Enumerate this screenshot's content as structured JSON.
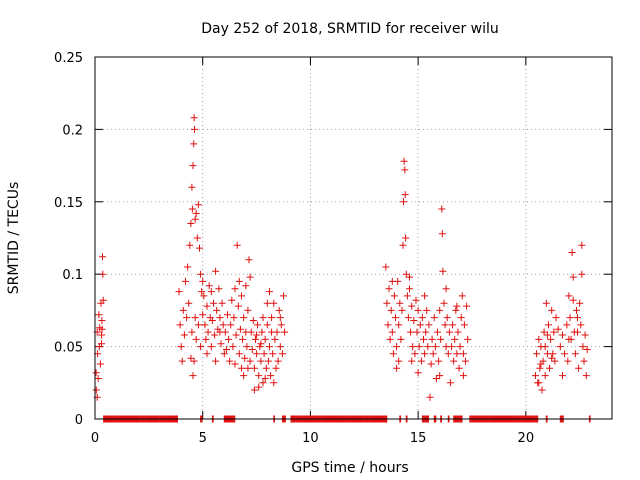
{
  "chart_data": {
    "type": "scatter",
    "title": "Day 252 of 2018, SRMTID for receiver wilu",
    "xlabel": "GPS time / hours",
    "ylabel": "SRMTID / TECUs",
    "xlim": [
      0,
      24
    ],
    "ylim": [
      0,
      0.25
    ],
    "xticks": [
      0,
      5,
      10,
      15,
      20
    ],
    "xtick_labels": [
      "0",
      "5",
      "10",
      "15",
      "20"
    ],
    "yticks": [
      0,
      0.05,
      0.1,
      0.15,
      0.2,
      0.25
    ],
    "ytick_labels": [
      "0",
      "0.05",
      "0.1",
      "0.15",
      "0.2",
      "0.25"
    ],
    "grid": true,
    "marker": "+",
    "color": "#e01010",
    "series": [
      {
        "name": "SRMTID",
        "points": [
          [
            0.05,
            0.032
          ],
          [
            0.1,
            0.06
          ],
          [
            0.12,
            0.045
          ],
          [
            0.15,
            0.028
          ],
          [
            0.18,
            0.072
          ],
          [
            0.2,
            0.05
          ],
          [
            0.22,
            0.063
          ],
          [
            0.25,
            0.038
          ],
          [
            0.28,
            0.08
          ],
          [
            0.3,
            0.058
          ],
          [
            0.32,
            0.068
          ],
          [
            0.35,
            0.112
          ],
          [
            0.36,
            0.1
          ],
          [
            0.38,
            0.082
          ],
          [
            0.06,
            0.02
          ],
          [
            0.1,
            0.015
          ],
          [
            0.3,
            0.052
          ],
          [
            0.33,
            0.062
          ],
          [
            3.9,
            0.088
          ],
          [
            3.95,
            0.065
          ],
          [
            4.0,
            0.05
          ],
          [
            4.05,
            0.04
          ],
          [
            4.1,
            0.075
          ],
          [
            4.15,
            0.058
          ],
          [
            4.2,
            0.095
          ],
          [
            4.25,
            0.07
          ],
          [
            4.3,
            0.105
          ],
          [
            4.35,
            0.08
          ],
          [
            4.4,
            0.12
          ],
          [
            4.45,
            0.135
          ],
          [
            4.5,
            0.16
          ],
          [
            4.52,
            0.145
          ],
          [
            4.55,
            0.175
          ],
          [
            4.58,
            0.19
          ],
          [
            4.6,
            0.208
          ],
          [
            4.62,
            0.2
          ],
          [
            4.65,
            0.138
          ],
          [
            4.7,
            0.142
          ],
          [
            4.75,
            0.125
          ],
          [
            4.8,
            0.148
          ],
          [
            4.85,
            0.118
          ],
          [
            4.9,
            0.1
          ],
          [
            4.95,
            0.088
          ],
          [
            5.0,
            0.072
          ],
          [
            5.05,
            0.085
          ],
          [
            5.1,
            0.065
          ],
          [
            5.15,
            0.055
          ],
          [
            5.2,
            0.078
          ],
          [
            5.25,
            0.06
          ],
          [
            5.3,
            0.092
          ],
          [
            5.35,
            0.07
          ],
          [
            5.4,
            0.05
          ],
          [
            5.45,
            0.068
          ],
          [
            5.5,
            0.08
          ],
          [
            5.55,
            0.058
          ],
          [
            5.6,
            0.102
          ],
          [
            5.65,
            0.075
          ],
          [
            5.7,
            0.062
          ],
          [
            5.75,
            0.09
          ],
          [
            5.8,
            0.07
          ],
          [
            5.85,
            0.052
          ],
          [
            5.9,
            0.08
          ],
          [
            5.95,
            0.065
          ],
          [
            6.0,
            0.045
          ],
          [
            4.55,
            0.03
          ],
          [
            4.6,
            0.04
          ],
          [
            4.7,
            0.055
          ],
          [
            4.8,
            0.065
          ],
          [
            4.9,
            0.05
          ],
          [
            5.0,
            0.095
          ],
          [
            4.45,
            0.042
          ],
          [
            4.5,
            0.06
          ],
          [
            4.65,
            0.07
          ],
          [
            5.2,
            0.045
          ],
          [
            5.4,
            0.088
          ],
          [
            5.6,
            0.04
          ],
          [
            5.8,
            0.06
          ],
          [
            6.05,
            0.06
          ],
          [
            6.1,
            0.048
          ],
          [
            6.15,
            0.072
          ],
          [
            6.2,
            0.055
          ],
          [
            6.25,
            0.04
          ],
          [
            6.3,
            0.065
          ],
          [
            6.35,
            0.082
          ],
          [
            6.4,
            0.05
          ],
          [
            6.45,
            0.07
          ],
          [
            6.5,
            0.038
          ],
          [
            6.55,
            0.058
          ],
          [
            6.6,
            0.12
          ],
          [
            6.65,
            0.078
          ],
          [
            6.7,
            0.045
          ],
          [
            6.75,
            0.062
          ],
          [
            6.8,
            0.035
          ],
          [
            6.85,
            0.055
          ],
          [
            6.9,
            0.07
          ],
          [
            6.95,
            0.042
          ],
          [
            7.0,
            0.06
          ],
          [
            7.05,
            0.05
          ],
          [
            7.1,
            0.075
          ],
          [
            7.15,
            0.11
          ],
          [
            7.2,
            0.04
          ],
          [
            7.25,
            0.06
          ],
          [
            7.3,
            0.048
          ],
          [
            7.35,
            0.068
          ],
          [
            7.4,
            0.035
          ],
          [
            7.45,
            0.055
          ],
          [
            7.5,
            0.045
          ],
          [
            7.55,
            0.065
          ],
          [
            7.6,
            0.03
          ],
          [
            7.65,
            0.05
          ],
          [
            7.7,
            0.04
          ],
          [
            7.75,
            0.06
          ],
          [
            7.8,
            0.025
          ],
          [
            7.85,
            0.045
          ],
          [
            7.9,
            0.055
          ],
          [
            7.95,
            0.035
          ],
          [
            8.0,
            0.065
          ],
          [
            8.05,
            0.04
          ],
          [
            8.1,
            0.05
          ],
          [
            8.15,
            0.03
          ],
          [
            8.2,
            0.07
          ],
          [
            8.25,
            0.045
          ],
          [
            8.3,
            0.08
          ],
          [
            8.35,
            0.055
          ],
          [
            8.4,
            0.035
          ],
          [
            8.45,
            0.06
          ],
          [
            8.5,
            0.04
          ],
          [
            8.55,
            0.075
          ],
          [
            8.6,
            0.05
          ],
          [
            8.65,
            0.065
          ],
          [
            8.7,
            0.045
          ],
          [
            8.75,
            0.085
          ],
          [
            8.8,
            0.06
          ],
          [
            7.2,
            0.098
          ],
          [
            7.0,
            0.092
          ],
          [
            6.8,
            0.085
          ],
          [
            6.5,
            0.09
          ],
          [
            8.1,
            0.088
          ],
          [
            7.9,
            0.028
          ],
          [
            7.6,
            0.022
          ],
          [
            8.3,
            0.025
          ],
          [
            6.7,
            0.095
          ],
          [
            7.4,
            0.02
          ],
          [
            8.6,
            0.07
          ],
          [
            8.0,
            0.08
          ],
          [
            8.2,
            0.06
          ],
          [
            7.8,
            0.07
          ],
          [
            6.9,
            0.03
          ],
          [
            7.1,
            0.035
          ],
          [
            7.5,
            0.058
          ],
          [
            7.7,
            0.052
          ],
          [
            13.5,
            0.105
          ],
          [
            13.55,
            0.08
          ],
          [
            13.6,
            0.065
          ],
          [
            13.65,
            0.09
          ],
          [
            13.7,
            0.055
          ],
          [
            13.75,
            0.075
          ],
          [
            13.8,
            0.06
          ],
          [
            13.85,
            0.045
          ],
          [
            13.9,
            0.085
          ],
          [
            13.95,
            0.07
          ],
          [
            14.0,
            0.05
          ],
          [
            14.05,
            0.095
          ],
          [
            14.1,
            0.065
          ],
          [
            14.15,
            0.08
          ],
          [
            14.2,
            0.055
          ],
          [
            14.25,
            0.075
          ],
          [
            14.3,
            0.12
          ],
          [
            14.32,
            0.15
          ],
          [
            14.35,
            0.178
          ],
          [
            14.38,
            0.172
          ],
          [
            14.4,
            0.155
          ],
          [
            14.42,
            0.125
          ],
          [
            14.45,
            0.1
          ],
          [
            14.5,
            0.085
          ],
          [
            14.55,
            0.07
          ],
          [
            14.6,
            0.09
          ],
          [
            14.65,
            0.06
          ],
          [
            14.7,
            0.078
          ],
          [
            14.75,
            0.05
          ],
          [
            14.8,
            0.068
          ],
          [
            14.85,
            0.045
          ],
          [
            14.9,
            0.082
          ],
          [
            14.95,
            0.06
          ],
          [
            15.0,
            0.075
          ],
          [
            15.05,
            0.05
          ],
          [
            15.1,
            0.065
          ],
          [
            15.15,
            0.04
          ],
          [
            15.2,
            0.07
          ],
          [
            15.25,
            0.055
          ],
          [
            15.3,
            0.045
          ],
          [
            15.35,
            0.06
          ],
          [
            15.4,
            0.075
          ],
          [
            15.45,
            0.05
          ],
          [
            15.5,
            0.065
          ],
          [
            15.55,
            0.015
          ],
          [
            15.6,
            0.038
          ],
          [
            15.65,
            0.055
          ],
          [
            15.7,
            0.045
          ],
          [
            15.75,
            0.07
          ],
          [
            15.8,
            0.05
          ],
          [
            15.85,
            0.028
          ],
          [
            15.9,
            0.06
          ],
          [
            15.95,
            0.04
          ],
          [
            16.0,
            0.075
          ],
          [
            16.05,
            0.055
          ],
          [
            16.1,
            0.145
          ],
          [
            16.12,
            0.128
          ],
          [
            16.15,
            0.102
          ],
          [
            16.2,
            0.08
          ],
          [
            16.25,
            0.065
          ],
          [
            16.3,
            0.05
          ],
          [
            16.35,
            0.07
          ],
          [
            16.4,
            0.045
          ],
          [
            16.45,
            0.06
          ],
          [
            16.5,
            0.025
          ],
          [
            16.55,
            0.05
          ],
          [
            16.6,
            0.065
          ],
          [
            16.65,
            0.04
          ],
          [
            16.7,
            0.055
          ],
          [
            16.75,
            0.075
          ],
          [
            16.8,
            0.045
          ],
          [
            16.85,
            0.06
          ],
          [
            16.9,
            0.035
          ],
          [
            16.95,
            0.05
          ],
          [
            17.0,
            0.07
          ],
          [
            17.05,
            0.085
          ],
          [
            17.1,
            0.045
          ],
          [
            17.15,
            0.065
          ],
          [
            17.2,
            0.04
          ],
          [
            17.25,
            0.078
          ],
          [
            17.3,
            0.055
          ],
          [
            14.1,
            0.04
          ],
          [
            14.0,
            0.035
          ],
          [
            13.8,
            0.095
          ],
          [
            14.6,
            0.098
          ],
          [
            14.7,
            0.04
          ],
          [
            15.0,
            0.032
          ],
          [
            15.3,
            0.085
          ],
          [
            16.0,
            0.03
          ],
          [
            16.3,
            0.09
          ],
          [
            16.8,
            0.078
          ],
          [
            17.1,
            0.03
          ],
          [
            20.45,
            0.03
          ],
          [
            20.5,
            0.045
          ],
          [
            20.55,
            0.025
          ],
          [
            20.6,
            0.055
          ],
          [
            20.65,
            0.035
          ],
          [
            20.7,
            0.05
          ],
          [
            20.75,
            0.02
          ],
          [
            20.8,
            0.04
          ],
          [
            20.85,
            0.06
          ],
          [
            20.9,
            0.03
          ],
          [
            20.95,
            0.08
          ],
          [
            21.0,
            0.045
          ],
          [
            21.05,
            0.065
          ],
          [
            21.1,
            0.035
          ],
          [
            21.15,
            0.055
          ],
          [
            21.2,
            0.075
          ],
          [
            21.25,
            0.045
          ],
          [
            21.3,
            0.06
          ],
          [
            21.35,
            0.04
          ],
          [
            21.4,
            0.07
          ],
          [
            20.6,
            0.025
          ],
          [
            20.7,
            0.038
          ],
          [
            20.9,
            0.05
          ],
          [
            21.0,
            0.058
          ],
          [
            21.2,
            0.042
          ],
          [
            21.5,
            0.062
          ],
          [
            21.6,
            0.05
          ],
          [
            21.7,
            0.03
          ],
          [
            21.8,
            0.045
          ],
          [
            21.9,
            0.065
          ],
          [
            22.0,
            0.085
          ],
          [
            22.05,
            0.07
          ],
          [
            22.1,
            0.055
          ],
          [
            22.15,
            0.115
          ],
          [
            22.2,
            0.098
          ],
          [
            22.25,
            0.06
          ],
          [
            22.3,
            0.045
          ],
          [
            22.35,
            0.075
          ],
          [
            22.4,
            0.06
          ],
          [
            22.45,
            0.035
          ],
          [
            22.5,
            0.08
          ],
          [
            22.55,
            0.065
          ],
          [
            22.6,
            0.12
          ],
          [
            22.65,
            0.05
          ],
          [
            22.7,
            0.04
          ],
          [
            22.75,
            0.058
          ],
          [
            22.8,
            0.03
          ],
          [
            22.85,
            0.048
          ],
          [
            22.0,
            0.055
          ],
          [
            22.2,
            0.082
          ],
          [
            21.7,
            0.058
          ],
          [
            21.95,
            0.04
          ],
          [
            22.4,
            0.07
          ],
          [
            22.6,
            0.1
          ]
        ],
        "zero_runs": [
          [
            0.4,
            3.85
          ],
          [
            4.9,
            5.0
          ],
          [
            5.45,
            5.5
          ],
          [
            6.0,
            6.5
          ],
          [
            8.3,
            8.35
          ],
          [
            8.7,
            8.85
          ],
          [
            9.1,
            13.55
          ],
          [
            14.15,
            14.2
          ],
          [
            14.45,
            14.5
          ],
          [
            15.2,
            15.5
          ],
          [
            15.75,
            15.85
          ],
          [
            16.05,
            16.1
          ],
          [
            16.4,
            16.45
          ],
          [
            16.65,
            17.05
          ],
          [
            17.4,
            20.55
          ],
          [
            20.95,
            21.0
          ],
          [
            21.6,
            21.75
          ],
          [
            22.95,
            23.0
          ]
        ]
      }
    ]
  }
}
